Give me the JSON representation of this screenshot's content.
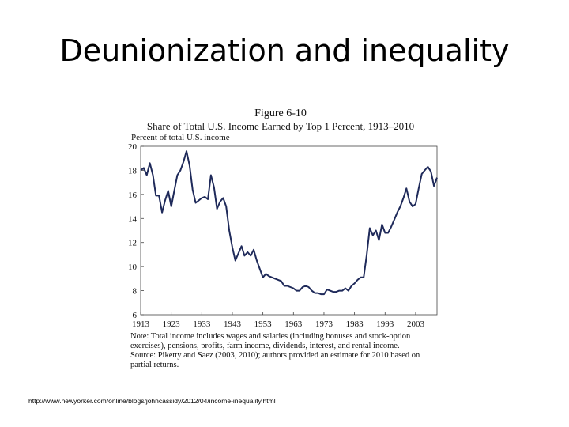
{
  "slide": {
    "title": "Deunionization and inequality",
    "url": "http://www.newyorker.com/online/blogs/johncassidy/2012/04/income-inequality.html"
  },
  "figure": {
    "number": "Figure 6-10",
    "note_lines": [
      "Note: Total income includes wages and salaries (including bonuses and stock-option",
      "exercises), pensions, profits, farm income, dividends, interest, and rental income.",
      "Source: Piketty and Saez (2003, 2010); authors provided an estimate for 2010 based on",
      "partial returns."
    ]
  },
  "chart_data": {
    "type": "line",
    "title": "Share of Total U.S. Income Earned by Top 1 Percent, 1913–2010",
    "ylabel": "Percent of total U.S. income",
    "xlabel": "",
    "xlim": [
      1913,
      2010
    ],
    "ylim": [
      6,
      20
    ],
    "x_ticks": [
      1913,
      1923,
      1933,
      1943,
      1953,
      1963,
      1973,
      1983,
      1993,
      2003
    ],
    "y_ticks": [
      6,
      8,
      10,
      12,
      14,
      16,
      18,
      20
    ],
    "line_color": "#1f2a5a",
    "series": [
      {
        "x": [
          1913,
          1914,
          1915,
          1916,
          1917,
          1918,
          1919,
          1920,
          1921,
          1922,
          1923,
          1924,
          1925,
          1926,
          1927,
          1928,
          1929,
          1930,
          1931,
          1932,
          1933,
          1934,
          1935,
          1936,
          1937,
          1938,
          1939,
          1940,
          1941,
          1942,
          1943,
          1944,
          1945,
          1946,
          1947,
          1948,
          1949,
          1950,
          1951,
          1952,
          1953,
          1954,
          1955,
          1956,
          1957,
          1958,
          1959,
          1960,
          1961,
          1962,
          1963,
          1964,
          1965,
          1966,
          1967,
          1968,
          1969,
          1970,
          1971,
          1972,
          1973,
          1974,
          1975,
          1976,
          1977,
          1978,
          1979,
          1980,
          1981,
          1982,
          1983,
          1984,
          1985,
          1986,
          1987,
          1988,
          1989,
          1990,
          1991,
          1992,
          1993,
          1994,
          1995,
          1996,
          1997,
          1998,
          1999,
          2000,
          2001,
          2002,
          2003,
          2004,
          2005,
          2006,
          2007,
          2008,
          2009,
          2010
        ],
        "y": [
          18.0,
          18.2,
          17.6,
          18.6,
          17.6,
          15.9,
          15.9,
          14.5,
          15.5,
          16.3,
          15.0,
          16.3,
          17.6,
          18.0,
          18.7,
          19.6,
          18.4,
          16.4,
          15.3,
          15.5,
          15.7,
          15.8,
          15.6,
          17.6,
          16.6,
          14.8,
          15.4,
          15.7,
          15.0,
          13.0,
          11.6,
          10.5,
          11.1,
          11.7,
          10.9,
          11.2,
          10.9,
          11.4,
          10.5,
          9.8,
          9.1,
          9.4,
          9.2,
          9.1,
          9.0,
          8.9,
          8.8,
          8.4,
          8.4,
          8.3,
          8.2,
          8.0,
          8.0,
          8.3,
          8.4,
          8.3,
          8.0,
          7.8,
          7.8,
          7.7,
          7.7,
          8.1,
          8.0,
          7.9,
          7.9,
          8.0,
          8.0,
          8.2,
          8.0,
          8.4,
          8.6,
          8.9,
          9.1,
          9.1,
          11.0,
          13.2,
          12.6,
          13.0,
          12.2,
          13.5,
          12.8,
          12.8,
          13.3,
          13.9,
          14.5,
          15.0,
          15.7,
          16.5,
          15.4,
          15.0,
          15.2,
          16.5,
          17.7,
          18.0,
          18.3,
          17.9,
          16.7,
          17.4
        ]
      }
    ]
  }
}
